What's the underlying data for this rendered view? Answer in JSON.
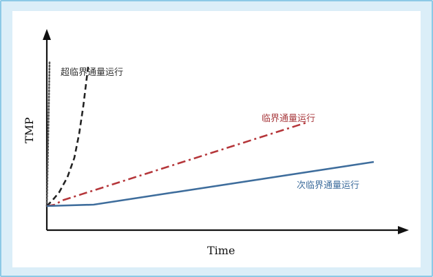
{
  "chart_data": {
    "type": "line",
    "xlabel": "Time",
    "ylabel": "TMP",
    "series": [
      {
        "name": "超临界通量运行",
        "style": "dotted",
        "color": "#555555",
        "points": [
          [
            0,
            0
          ],
          [
            0.5,
            20
          ],
          [
            1.2,
            60
          ],
          [
            2,
            100
          ],
          [
            3,
            150
          ],
          [
            4,
            210
          ]
        ]
      },
      {
        "name": "超临界通量运行",
        "style": "dashed",
        "color": "#222222",
        "points": [
          [
            0,
            0
          ],
          [
            8,
            8
          ],
          [
            18,
            20
          ],
          [
            30,
            42
          ],
          [
            40,
            70
          ],
          [
            47,
            105
          ],
          [
            53,
            145
          ],
          [
            60,
            202
          ]
        ]
      },
      {
        "name": "临界通量运行",
        "style": "dash-dot",
        "color": "#b5363a",
        "points": [
          [
            0,
            0
          ],
          [
            12,
            2
          ],
          [
            22,
            8
          ],
          [
            380,
            122
          ]
        ]
      },
      {
        "name": "次临界通量运行",
        "style": "solid",
        "color": "#3e6d9c",
        "points": [
          [
            0,
            0
          ],
          [
            68,
            2
          ],
          [
            475,
            64
          ]
        ]
      }
    ],
    "labels": {
      "supercritical": "超临界通量运行",
      "critical": "临界通量运行",
      "subcritical": "次临界通量运行"
    },
    "label_colors": {
      "supercritical": "#333333",
      "critical": "#a83a3e",
      "subcritical": "#3e6d9c"
    },
    "xlim": [
      0,
      520
    ],
    "ylim": [
      -40,
      260
    ]
  }
}
